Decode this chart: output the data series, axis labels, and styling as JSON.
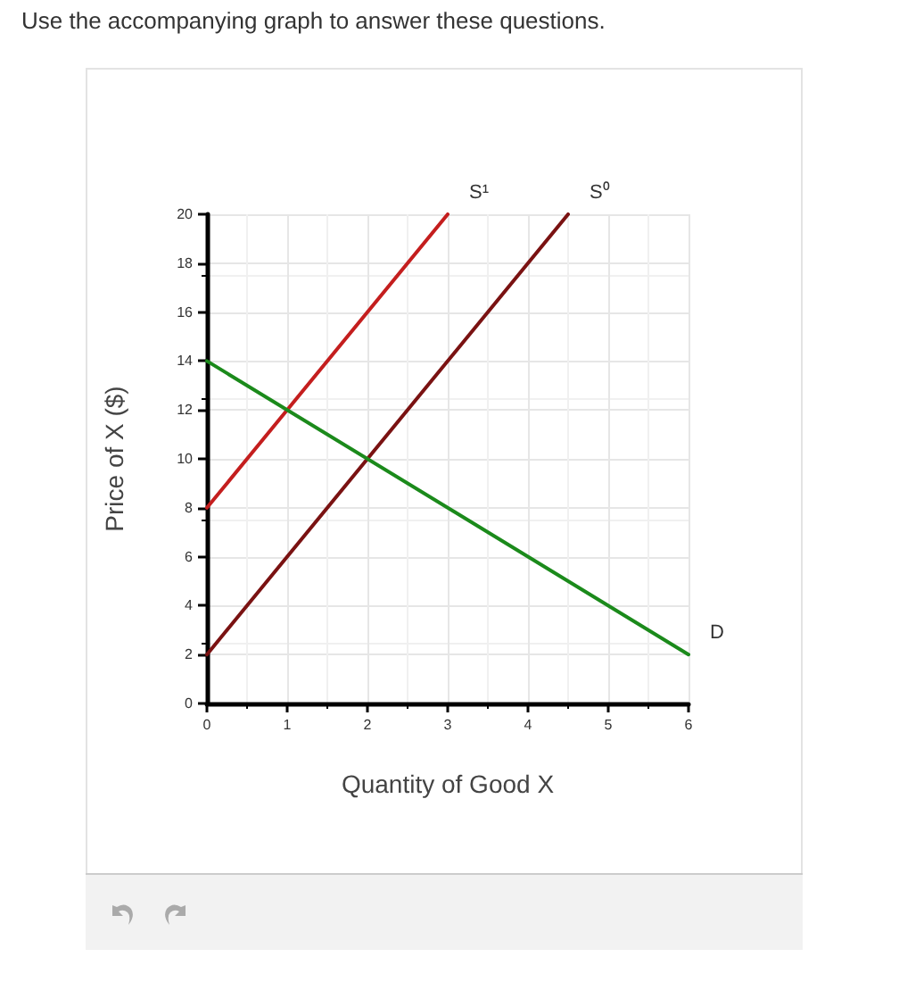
{
  "chart_data": {
    "type": "line",
    "title": "Use the accompanying graph to answer these questions.",
    "xlabel": "Quantity of Good X",
    "ylabel": "Price of X ($)",
    "series": [
      {
        "name": "S¹",
        "color": "#c41e1e",
        "x": [
          0,
          3
        ],
        "values": [
          8,
          20
        ]
      },
      {
        "name": "S⁰",
        "color": "#7a1212",
        "x": [
          0,
          4.5
        ],
        "values": [
          2,
          20
        ]
      },
      {
        "name": "D",
        "color": "#1b8a1b",
        "x": [
          0,
          6
        ],
        "values": [
          14,
          2
        ]
      }
    ],
    "xlim": [
      0,
      6
    ],
    "xticks": [
      0,
      1,
      2,
      3,
      4,
      5,
      6
    ],
    "ylim": [
      0,
      20
    ],
    "yticks": [
      0,
      2,
      4,
      6,
      8,
      10,
      12,
      14,
      16,
      18,
      20
    ],
    "grid": true,
    "legend": false,
    "marker": "none",
    "line_style": "solid"
  }
}
